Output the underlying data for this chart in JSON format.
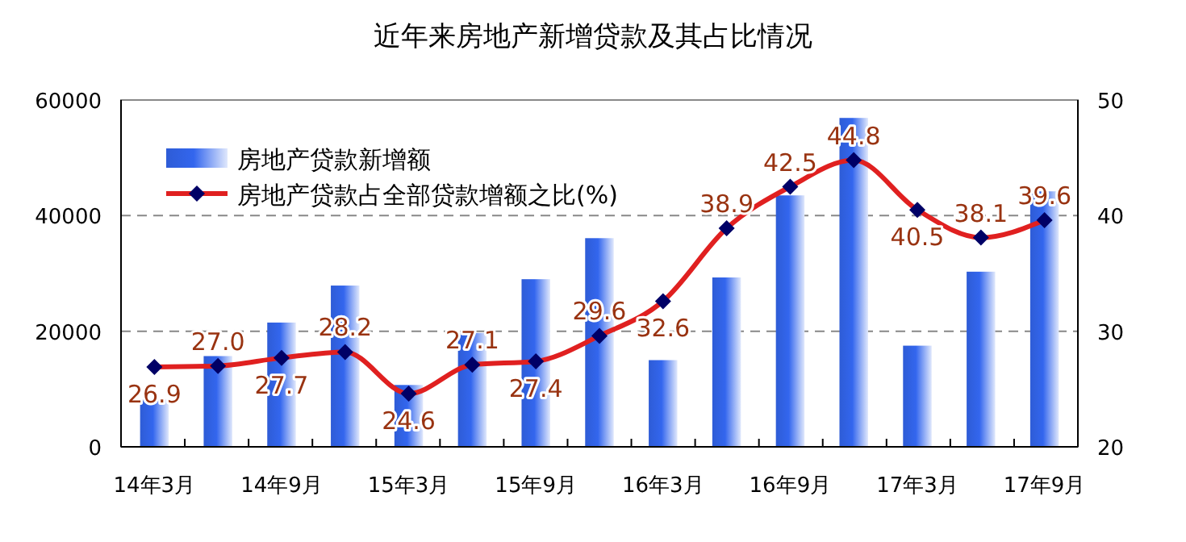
{
  "chart_data": {
    "type": "bar",
    "title": "近年来房地产新增贷款及其占比情况",
    "categories": [
      "14年3月",
      null,
      "14年9月",
      null,
      "15年3月",
      null,
      "15年9月",
      null,
      "16年3月",
      null,
      "16年9月",
      null,
      "17年3月",
      null,
      "17年9月"
    ],
    "series": [
      {
        "name": "房地产贷款新增额",
        "color": "#3366ee",
        "values": [
          8200,
          15700,
          21500,
          27900,
          10700,
          19700,
          29000,
          36100,
          15000,
          29300,
          43500,
          56900,
          17500,
          30300,
          44200
        ]
      },
      {
        "name": "房地产贷款占全部贷款增额之比(%)",
        "type": "line",
        "axis": "y2",
        "color": "#e02020",
        "marker": "diamond",
        "values": [
          26.9,
          27.0,
          27.7,
          28.2,
          24.6,
          27.1,
          27.4,
          29.6,
          32.6,
          38.9,
          42.5,
          44.8,
          40.5,
          38.1,
          39.6
        ],
        "value_labels": [
          "26.9",
          "27.0",
          "27.7",
          "28.2",
          "24.6",
          "27.1",
          "27.4",
          "29.6",
          "32.6",
          "38.9",
          "42.5",
          "44.8",
          "40.5",
          "38.1",
          "39.6"
        ]
      }
    ],
    "ylim": [
      0,
      60000
    ],
    "yticks": [
      0,
      20000,
      40000,
      60000
    ],
    "y2lim": [
      20,
      50
    ],
    "y2ticks": [
      20,
      30,
      40,
      50
    ],
    "grid": "y",
    "legend": "top left"
  }
}
